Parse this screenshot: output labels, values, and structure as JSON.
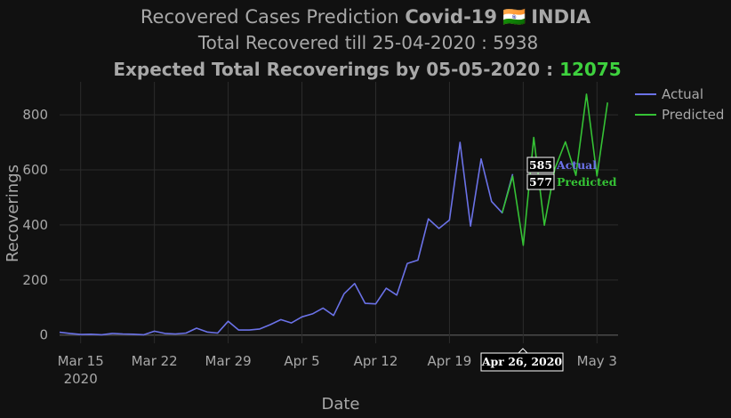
{
  "title": {
    "line1_prefix": "Recovered Cases Prediction ",
    "line1_bold": "Covid-19",
    "line1_flag": "🇮🇳",
    "line1_country": "INDIA",
    "line2": "Total Recovered till 25-04-2020 : 5938",
    "line3_label": "Expected Total Recoverings by 05-05-2020 : ",
    "line3_value": "12075"
  },
  "colors": {
    "background": "#111111",
    "actual": "#6b72e8",
    "predicted": "#35c235",
    "highlight_value": "#3ed13e",
    "text": "#a8a8a8",
    "grid": "#2c2c2c"
  },
  "chart_data": {
    "type": "line",
    "x_start": "2020-03-13",
    "xlabel": "Date",
    "ylabel": "Recoverings",
    "xlim": [
      "2020-03-13",
      "2020-05-05"
    ],
    "ylim": [
      -30,
      920
    ],
    "y_ticks": [
      0,
      200,
      400,
      600,
      800
    ],
    "x_tick_labels": [
      {
        "date": "2020-03-15",
        "label": "Mar 15",
        "sub": "2020"
      },
      {
        "date": "2020-03-22",
        "label": "Mar 22"
      },
      {
        "date": "2020-03-29",
        "label": "Mar 29"
      },
      {
        "date": "2020-04-05",
        "label": "Apr 5"
      },
      {
        "date": "2020-04-12",
        "label": "Apr 12"
      },
      {
        "date": "2020-04-19",
        "label": "Apr 19"
      },
      {
        "date": "2020-04-26",
        "label": "Apr 26"
      },
      {
        "date": "2020-05-03",
        "label": "May 3"
      }
    ],
    "grid": true,
    "legend_position": "top-right",
    "series": [
      {
        "name": "Actual",
        "color": "#6b72e8",
        "start": "2020-03-13",
        "values": [
          10,
          6,
          2,
          3,
          1,
          6,
          4,
          3,
          1,
          14,
          6,
          4,
          7,
          25,
          11,
          7,
          50,
          18,
          18,
          22,
          38,
          56,
          44,
          66,
          77,
          98,
          71,
          150,
          187,
          115,
          113,
          170,
          145,
          260,
          272,
          422,
          387,
          418,
          700,
          396,
          640,
          485,
          444,
          585
        ]
      },
      {
        "name": "Predicted",
        "color": "#35c235",
        "start": "2020-04-24",
        "values": [
          444,
          577,
          326,
          718,
          399,
          604,
          702,
          580,
          875,
          578,
          845
        ]
      }
    ],
    "hover": {
      "date_label": "Apr 26, 2020",
      "actual": {
        "value": "585",
        "name": "Actual"
      },
      "predicted": {
        "value": "577",
        "name": "Predicted"
      }
    }
  }
}
